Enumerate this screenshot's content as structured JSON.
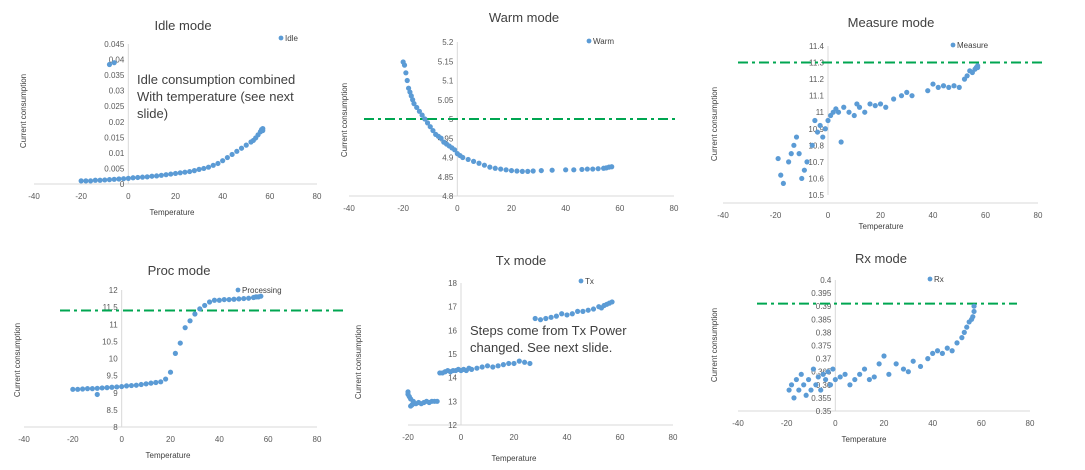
{
  "chart_data": [
    {
      "type": "scatter",
      "title": "Idle mode",
      "xlabel": "Temperature",
      "ylabel": "Current consumption",
      "xlim": [
        -40,
        80
      ],
      "ylim": [
        0,
        0.045
      ],
      "xticks": [
        "-40",
        "-20",
        "0",
        "20",
        "40",
        "60",
        "80"
      ],
      "yticks": [
        "0",
        "0.005",
        "0.01",
        "0.015",
        "0.02",
        "0.025",
        "0.03",
        "0.035",
        "0.04",
        "0.045"
      ],
      "legend": "top-right",
      "series": [
        {
          "name": "Idle",
          "color": "#5b9bd5",
          "x": [
            -20,
            -18,
            -16,
            -14,
            -12,
            -10,
            -8,
            -6,
            -4,
            -2,
            0,
            2,
            4,
            6,
            8,
            10,
            12,
            14,
            16,
            18,
            20,
            22,
            24,
            26,
            28,
            30,
            32,
            34,
            36,
            38,
            40,
            42,
            44,
            46,
            48,
            50,
            52,
            53,
            54,
            55,
            56,
            56.5,
            57,
            57,
            -8,
            -6
          ],
          "y": [
            0.001,
            0.001,
            0.001,
            0.0012,
            0.0012,
            0.0013,
            0.0014,
            0.0015,
            0.0016,
            0.0017,
            0.0018,
            0.002,
            0.0021,
            0.0022,
            0.0023,
            0.0025,
            0.0026,
            0.0028,
            0.003,
            0.0032,
            0.0034,
            0.0036,
            0.0038,
            0.004,
            0.0043,
            0.0047,
            0.005,
            0.0054,
            0.006,
            0.0066,
            0.0075,
            0.0085,
            0.0095,
            0.0105,
            0.0115,
            0.0125,
            0.0135,
            0.014,
            0.0148,
            0.0158,
            0.0168,
            0.0175,
            0.0178,
            0.0172,
            0.0384,
            0.039
          ]
        }
      ],
      "annotation": "Idle consumption combined\nWith temperature (see next\nslide)"
    },
    {
      "type": "scatter",
      "title": "Warm mode",
      "xlabel": "",
      "ylabel": "Current consumption",
      "xlim": [
        -40,
        80
      ],
      "ylim": [
        4.8,
        5.2
      ],
      "xticks": [
        "-40",
        "-20",
        "0",
        "20",
        "40",
        "60",
        "80"
      ],
      "yticks": [
        "4.8",
        "4.85",
        "4.9",
        "4.95",
        "5",
        "5.05",
        "5.1",
        "5.15",
        "5.2"
      ],
      "legend": "top-right",
      "threshold": 5.0,
      "series": [
        {
          "name": "Warm",
          "color": "#5b9bd5",
          "x": [
            -20,
            -19.5,
            -19,
            -18.5,
            -18,
            -17.5,
            -17,
            -16.5,
            -16,
            -15,
            -14,
            -13,
            -12,
            -11,
            -10,
            -9,
            -8,
            -7,
            -6,
            -5,
            -4,
            -3,
            -2,
            -1,
            0,
            1,
            2,
            4,
            6,
            8,
            10,
            12,
            14,
            16,
            18,
            20,
            22,
            24,
            26,
            28,
            31,
            35,
            40,
            43,
            46,
            48,
            50,
            52,
            54,
            55,
            56,
            57
          ],
          "y": [
            5.148,
            5.14,
            5.12,
            5.1,
            5.08,
            5.07,
            5.06,
            5.05,
            5.04,
            5.03,
            5.02,
            5.01,
            5.0,
            4.99,
            4.98,
            4.97,
            4.96,
            4.955,
            4.95,
            4.94,
            4.935,
            4.93,
            4.925,
            4.92,
            4.91,
            4.905,
            4.9,
            4.895,
            4.89,
            4.885,
            4.88,
            4.875,
            4.872,
            4.87,
            4.868,
            4.866,
            4.865,
            4.864,
            4.864,
            4.865,
            4.866,
            4.867,
            4.868,
            4.868,
            4.869,
            4.87,
            4.87,
            4.871,
            4.872,
            4.873,
            4.875,
            4.876
          ]
        }
      ]
    },
    {
      "type": "scatter",
      "title": "Measure mode",
      "xlabel": "Temperature",
      "ylabel": "Current consumption",
      "xlim": [
        -40,
        80
      ],
      "ylim": [
        10.5,
        11.4
      ],
      "xticks": [
        "-40",
        "-20",
        "0",
        "20",
        "40",
        "60",
        "80"
      ],
      "yticks": [
        "10.5",
        "10.6",
        "10.7",
        "10.8",
        "10.9",
        "11",
        "11.1",
        "11.2",
        "11.3",
        "11.4"
      ],
      "legend": "top-right",
      "threshold": 11.3,
      "series": [
        {
          "name": "Measure",
          "color": "#5b9bd5",
          "x": [
            -19,
            -18,
            -17,
            -15,
            -14,
            -13,
            -12,
            -11,
            -10,
            -9,
            -8,
            -6,
            -5,
            -4,
            -3,
            -2,
            -1,
            0,
            1,
            2,
            3,
            4,
            5,
            6,
            8,
            10,
            11,
            12,
            14,
            16,
            18,
            20,
            22,
            25,
            28,
            30,
            32,
            38,
            40,
            42,
            44,
            46,
            48,
            50,
            52,
            53,
            54,
            55,
            56,
            56.5,
            57,
            57
          ],
          "y": [
            10.72,
            10.62,
            10.57,
            10.7,
            10.75,
            10.8,
            10.85,
            10.75,
            10.6,
            10.65,
            10.7,
            10.8,
            10.95,
            10.88,
            10.92,
            10.85,
            10.9,
            10.95,
            10.98,
            11.0,
            11.02,
            11.0,
            10.82,
            11.03,
            11.0,
            10.98,
            11.05,
            11.03,
            11.0,
            11.05,
            11.04,
            11.05,
            11.03,
            11.08,
            11.1,
            11.12,
            11.1,
            11.13,
            11.17,
            11.15,
            11.16,
            11.15,
            11.16,
            11.15,
            11.2,
            11.22,
            11.25,
            11.24,
            11.26,
            11.27,
            11.28,
            11.27
          ]
        }
      ]
    },
    {
      "type": "scatter",
      "title": "Proc mode",
      "xlabel": "Temperature",
      "ylabel": "Current consumption",
      "xlim": [
        -40,
        80
      ],
      "ylim": [
        8,
        12
      ],
      "xticks": [
        "-40",
        "-20",
        "0",
        "20",
        "40",
        "60",
        "80"
      ],
      "yticks": [
        "8",
        "8.5",
        "9",
        "9.5",
        "10",
        "10.5",
        "11",
        "11.5",
        "12"
      ],
      "legend": "top-right",
      "threshold": 11.4,
      "series": [
        {
          "name": "Processing",
          "color": "#5b9bd5",
          "x": [
            -20,
            -18,
            -16,
            -14,
            -12,
            -10,
            -8,
            -6,
            -4,
            -2,
            0,
            2,
            4,
            6,
            8,
            10,
            12,
            14,
            16,
            18,
            20,
            22,
            24,
            26,
            28,
            30,
            32,
            34,
            36,
            38,
            40,
            42,
            44,
            46,
            48,
            50,
            52,
            54,
            55,
            56,
            57,
            -10
          ],
          "y": [
            9.1,
            9.1,
            9.11,
            9.12,
            9.12,
            9.13,
            9.14,
            9.15,
            9.16,
            9.17,
            9.18,
            9.2,
            9.21,
            9.22,
            9.24,
            9.26,
            9.28,
            9.3,
            9.32,
            9.4,
            9.6,
            10.15,
            10.45,
            10.9,
            11.1,
            11.3,
            11.45,
            11.55,
            11.65,
            11.7,
            11.7,
            11.72,
            11.72,
            11.73,
            11.74,
            11.75,
            11.76,
            11.78,
            11.8,
            11.8,
            11.82,
            8.95
          ]
        }
      ]
    },
    {
      "type": "scatter",
      "title": "Tx mode",
      "xlabel": "Temperature",
      "ylabel": "Current consumption",
      "xlim": [
        -20,
        80
      ],
      "ylim": [
        12,
        18
      ],
      "xticks": [
        "-20",
        "0",
        "20",
        "40",
        "60",
        "80"
      ],
      "yticks": [
        "12",
        "13",
        "14",
        "15",
        "16",
        "17",
        "18"
      ],
      "legend": "top-right",
      "series": [
        {
          "name": "Tx",
          "color": "#5b9bd5",
          "x": [
            -20,
            -19.5,
            -19,
            -18.5,
            -18,
            -17,
            -16,
            -15,
            -14,
            -13,
            -12,
            -11,
            -10,
            -9,
            -8,
            -7,
            -6,
            -5,
            -4,
            -3,
            -2,
            -1,
            0,
            1,
            2,
            3,
            4,
            6,
            8,
            10,
            12,
            14,
            16,
            18,
            20,
            22,
            24,
            26,
            28,
            30,
            32,
            34,
            36,
            38,
            40,
            42,
            44,
            46,
            48,
            50,
            52,
            53,
            54,
            55,
            56,
            57,
            -20,
            -19,
            -18
          ],
          "y": [
            13.3,
            13.2,
            12.8,
            12.85,
            12.9,
            12.9,
            12.95,
            12.9,
            12.95,
            13.0,
            12.95,
            13.0,
            13.0,
            13.0,
            14.2,
            14.2,
            14.25,
            14.3,
            14.25,
            14.3,
            14.3,
            14.35,
            14.3,
            14.35,
            14.3,
            14.4,
            14.35,
            14.4,
            14.45,
            14.5,
            14.45,
            14.5,
            14.55,
            14.6,
            14.6,
            14.7,
            14.65,
            14.6,
            16.5,
            16.45,
            16.5,
            16.55,
            16.6,
            16.7,
            16.65,
            16.7,
            16.8,
            16.8,
            16.85,
            16.9,
            17.0,
            16.95,
            17.05,
            17.1,
            17.15,
            17.2,
            13.4,
            13.1,
            13.0
          ]
        }
      ],
      "annotation": "Steps come from Tx Power\nchanged. See next slide."
    },
    {
      "type": "scatter",
      "title": "Rx mode",
      "xlabel": "Temperature",
      "ylabel": "Current consumption",
      "xlim": [
        -40,
        80
      ],
      "ylim": [
        0.35,
        0.4
      ],
      "xticks": [
        "-40",
        "-20",
        "0",
        "20",
        "40",
        "60",
        "80"
      ],
      "yticks": [
        "0.35",
        "0.355",
        "0.36",
        "0.365",
        "0.37",
        "0.375",
        "0.38",
        "0.385",
        "0.39",
        "0.395",
        "0.4"
      ],
      "legend": "top-right",
      "threshold": 0.391,
      "series": [
        {
          "name": "Rx",
          "color": "#5b9bd5",
          "x": [
            -19,
            -18,
            -17,
            -16,
            -15,
            -14,
            -13,
            -12,
            -11,
            -10,
            -9,
            -8,
            -7,
            -6,
            -5,
            -4,
            -3,
            -2,
            -1,
            0,
            2,
            4,
            6,
            8,
            10,
            12,
            14,
            16,
            18,
            20,
            22,
            25,
            28,
            30,
            32,
            35,
            38,
            40,
            42,
            44,
            46,
            48,
            50,
            52,
            53,
            54,
            55,
            56,
            56.5,
            57,
            57
          ],
          "y": [
            0.358,
            0.36,
            0.355,
            0.362,
            0.358,
            0.364,
            0.36,
            0.356,
            0.362,
            0.358,
            0.366,
            0.36,
            0.363,
            0.358,
            0.364,
            0.362,
            0.365,
            0.36,
            0.366,
            0.362,
            0.363,
            0.364,
            0.36,
            0.362,
            0.364,
            0.366,
            0.362,
            0.363,
            0.368,
            0.371,
            0.364,
            0.368,
            0.366,
            0.365,
            0.369,
            0.367,
            0.37,
            0.372,
            0.373,
            0.372,
            0.374,
            0.373,
            0.376,
            0.378,
            0.38,
            0.382,
            0.384,
            0.385,
            0.386,
            0.388,
            0.39
          ]
        }
      ]
    }
  ]
}
